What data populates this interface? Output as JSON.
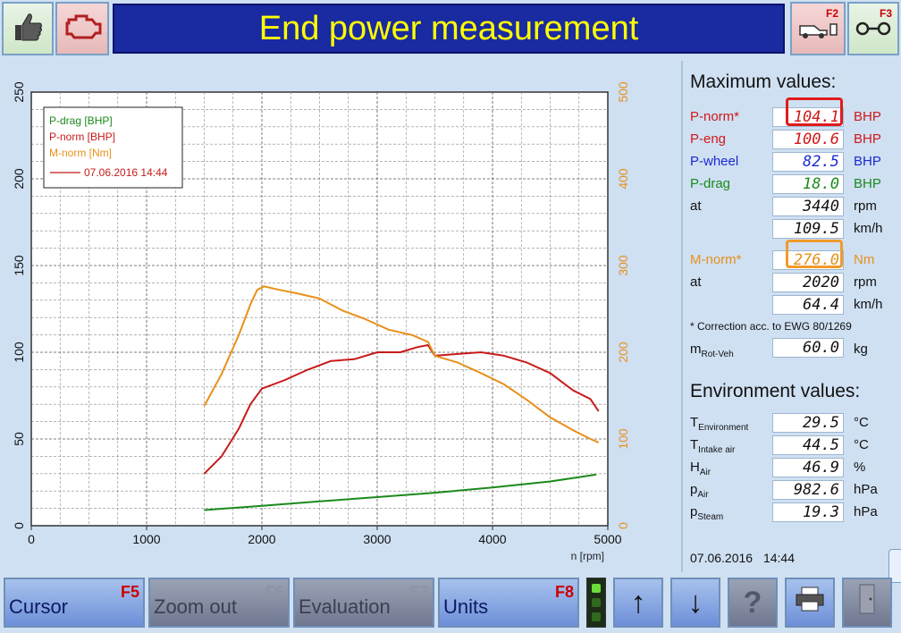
{
  "header": {
    "title": "End power measurement",
    "left_buttons": [
      {
        "icon": "thumbs-up-icon"
      },
      {
        "icon": "engine-icon"
      }
    ],
    "right_buttons": [
      {
        "icon": "vehicle-on-dyno-icon",
        "fkey": "F2"
      },
      {
        "icon": "roller-icon",
        "fkey": "F3"
      }
    ]
  },
  "maximum": {
    "heading": "Maximum values:",
    "rows": [
      {
        "label": "P-norm*",
        "value": "104.1",
        "unit": "BHP",
        "color": "#d01818"
      },
      {
        "label": "P-eng",
        "value": "100.6",
        "unit": "BHP",
        "color": "#d01818"
      },
      {
        "label": "P-wheel",
        "value": "82.5",
        "unit": "BHP",
        "color": "#1a2ad0"
      },
      {
        "label": "P-drag",
        "value": "18.0",
        "unit": "BHP",
        "color": "#1b8a1b"
      },
      {
        "label": "at",
        "value": "3440",
        "unit": "rpm",
        "color": "#111111"
      },
      {
        "label": "",
        "value": "109.5",
        "unit": "km/h",
        "color": "#111111"
      },
      {
        "label": "M-norm*",
        "value": "276.0",
        "unit": "Nm",
        "color": "#e8901a"
      },
      {
        "label": "at",
        "value": "2020",
        "unit": "rpm",
        "color": "#111111"
      },
      {
        "label": "",
        "value": "64.4",
        "unit": "km/h",
        "color": "#111111"
      }
    ],
    "note": "* Correction acc. to EWG 80/1269",
    "mrot": {
      "label": "m",
      "sub": "Rot-Veh",
      "value": "60.0",
      "unit": "kg"
    }
  },
  "environment": {
    "heading": "Environment values:",
    "rows": [
      {
        "sym": "T",
        "sub": "Environment",
        "value": "29.5",
        "unit": "°C"
      },
      {
        "sym": "T",
        "sub": "Intake air",
        "value": "44.5",
        "unit": "°C"
      },
      {
        "sym": "H",
        "sub": "Air",
        "value": "46.9",
        "unit": "%"
      },
      {
        "sym": "p",
        "sub": "Air",
        "value": "982.6",
        "unit": "hPa"
      },
      {
        "sym": "p",
        "sub": "Steam",
        "value": "19.3",
        "unit": "hPa"
      }
    ],
    "date": "07.06.2016",
    "time": "14:44"
  },
  "footer": {
    "buttons": [
      {
        "label": "Cursor",
        "fkey": "F5",
        "enabled": true
      },
      {
        "label": "Zoom out",
        "fkey": "F6",
        "enabled": false
      },
      {
        "label": "Evaluation",
        "fkey": "F7",
        "enabled": false
      },
      {
        "label": "Units",
        "fkey": "F8",
        "enabled": true
      }
    ],
    "icons": [
      "traffic-light-icon",
      "arrow-up-icon",
      "arrow-down-icon",
      "help-icon",
      "printer-icon",
      "exit-door-icon"
    ]
  },
  "chart_data": {
    "type": "line",
    "xlabel": "n [rpm]",
    "xlim": [
      0,
      5000
    ],
    "ylim_left": [
      0,
      250
    ],
    "ylim_right": [
      0,
      500
    ],
    "x_ticks": [
      0,
      1000,
      2000,
      3000,
      4000,
      5000
    ],
    "y_ticks_left": [
      0,
      50,
      100,
      150,
      200,
      250
    ],
    "y_ticks_right": [
      0,
      100,
      200,
      300,
      400,
      500
    ],
    "grid": true,
    "legend": {
      "entries": [
        {
          "name": "P-drag [BHP]",
          "color": "#1b8a1b"
        },
        {
          "name": "P-norm [BHP]",
          "color": "#c81a1a"
        },
        {
          "name": "M-norm [Nm]",
          "color": "#e8901a"
        }
      ],
      "measurement": "07.06.2016 14:44",
      "placement": "top-left"
    },
    "series": [
      {
        "name": "P-drag [BHP]",
        "axis": "left",
        "color": "#1b8a1b",
        "x": [
          1500,
          2000,
          2500,
          3000,
          3500,
          4000,
          4500,
          4900
        ],
        "y": [
          9,
          11.5,
          14,
          16.5,
          19,
          22,
          25.5,
          29.5
        ]
      },
      {
        "name": "P-norm [BHP]",
        "axis": "left",
        "color": "#c81a1a",
        "x": [
          1500,
          1650,
          1800,
          1900,
          2000,
          2200,
          2400,
          2600,
          2800,
          3000,
          3200,
          3350,
          3440,
          3500,
          3700,
          3900,
          4100,
          4300,
          4500,
          4700,
          4850,
          4920
        ],
        "y": [
          30,
          40,
          56,
          70,
          79,
          84,
          90,
          95,
          96,
          100,
          100,
          103,
          104.1,
          98,
          99,
          100,
          98,
          94,
          88,
          78,
          73,
          66
        ]
      },
      {
        "name": "M-norm [Nm]",
        "axis": "right",
        "color": "#e8901a",
        "x": [
          1500,
          1650,
          1800,
          1900,
          1960,
          2020,
          2150,
          2300,
          2500,
          2700,
          2900,
          3100,
          3300,
          3440,
          3500,
          3700,
          3900,
          4100,
          4300,
          4500,
          4700,
          4850,
          4920
        ],
        "y": [
          138,
          175,
          220,
          255,
          272,
          276,
          272,
          268,
          262,
          248,
          238,
          226,
          220,
          212,
          196,
          188,
          176,
          163,
          145,
          125,
          110,
          100,
          96
        ]
      }
    ]
  }
}
